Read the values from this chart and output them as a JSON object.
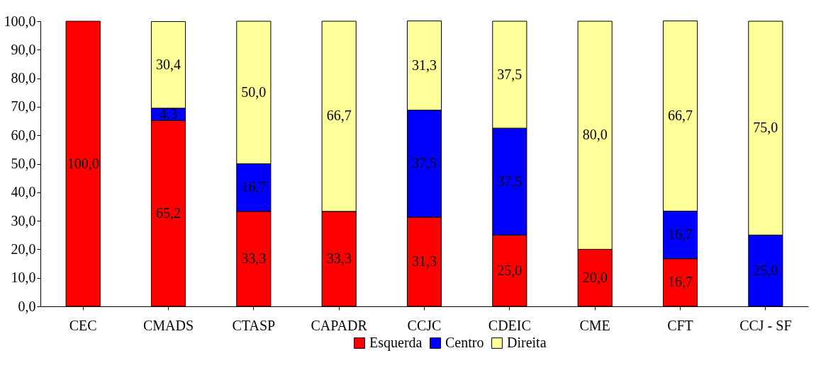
{
  "chart_data": {
    "type": "bar",
    "stacked": true,
    "categories": [
      "CEC",
      "CMADS",
      "CTASP",
      "CAPADR",
      "CCJC",
      "CDEIC",
      "CME",
      "CFT",
      "CCJ - SF"
    ],
    "series": [
      {
        "name": "Esquerda",
        "color": "#ff0000",
        "values": [
          100.0,
          65.2,
          33.3,
          33.3,
          31.3,
          25.0,
          20.0,
          16.7,
          null
        ],
        "value_labels": [
          "100,0",
          "65,2",
          "33,3",
          "33,3",
          "31,3",
          "25,0",
          "20,0",
          "16,7",
          null
        ]
      },
      {
        "name": "Centro",
        "color": "#0000ff",
        "values": [
          null,
          4.3,
          16.7,
          null,
          37.5,
          37.5,
          null,
          16.7,
          25.0
        ],
        "value_labels": [
          null,
          "4,3",
          "16,7",
          null,
          "37,5",
          "37,5",
          null,
          "16,7",
          "25,0"
        ]
      },
      {
        "name": "Direita",
        "color": "#ffff99",
        "values": [
          null,
          30.4,
          50.0,
          66.7,
          31.3,
          37.5,
          80.0,
          66.7,
          75.0
        ],
        "value_labels": [
          null,
          "30,4",
          "50,0",
          "66,7",
          "31,3",
          "37,5",
          "80,0",
          "66,7",
          "75,0"
        ]
      }
    ],
    "ylim": [
      0,
      100
    ],
    "yticks": [
      {
        "value": 0,
        "label": "0,0"
      },
      {
        "value": 10,
        "label": "10,0"
      },
      {
        "value": 20,
        "label": "20,0"
      },
      {
        "value": 30,
        "label": "30,0"
      },
      {
        "value": 40,
        "label": "40,0"
      },
      {
        "value": 50,
        "label": "50,0"
      },
      {
        "value": 60,
        "label": "60,0"
      },
      {
        "value": 70,
        "label": "70,0"
      },
      {
        "value": 80,
        "label": "80,0"
      },
      {
        "value": 90,
        "label": "90,0"
      },
      {
        "value": 100,
        "label": "100,0"
      }
    ],
    "grid": false,
    "legend": "bottom"
  }
}
